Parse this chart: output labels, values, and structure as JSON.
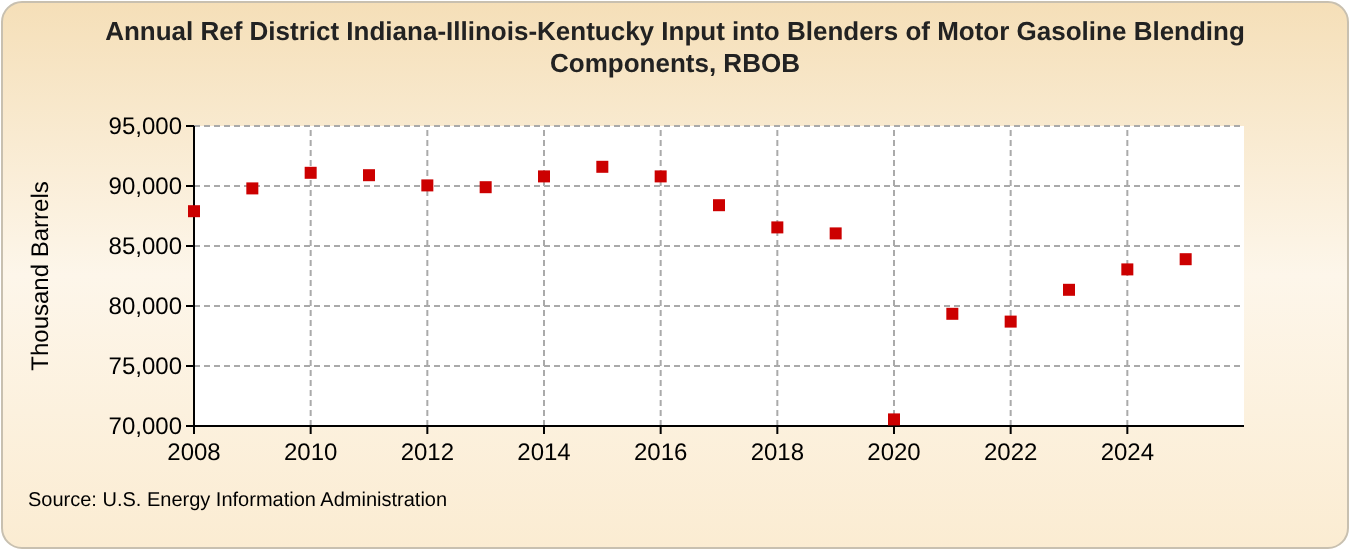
{
  "chart_data": {
    "type": "scatter",
    "title": "Annual Ref District Indiana-Illinois-Kentucky Input into Blenders of Motor Gasoline Blending Components, RBOB",
    "ylabel": "Thousand Barrels",
    "x": [
      2008,
      2009,
      2010,
      2011,
      2012,
      2013,
      2014,
      2015,
      2016,
      2017,
      2018,
      2019,
      2020,
      2021,
      2022,
      2023,
      2024,
      2025
    ],
    "series": [
      {
        "color": "#cc0000",
        "values": [
          87900,
          89800,
          91100,
          90900,
          90050,
          89900,
          90800,
          91600,
          90800,
          88400,
          86550,
          86050,
          70550,
          79350,
          78700,
          81350,
          83050,
          83900
        ]
      }
    ],
    "xlim": [
      2008,
      2026
    ],
    "xticks": [
      2008,
      2010,
      2012,
      2014,
      2016,
      2018,
      2020,
      2022,
      2024
    ],
    "ylim": [
      70000,
      95000
    ],
    "yticks": [
      {
        "value": 70000,
        "label": "70,000"
      },
      {
        "value": 75000,
        "label": "75,000"
      },
      {
        "value": 80000,
        "label": "80,000"
      },
      {
        "value": 85000,
        "label": "85,000"
      },
      {
        "value": 90000,
        "label": "90,000"
      },
      {
        "value": 95000,
        "label": "95,000"
      }
    ],
    "grid": true,
    "marker": "square",
    "annotations": [
      "Source: U.S. Energy Information Administration"
    ]
  }
}
